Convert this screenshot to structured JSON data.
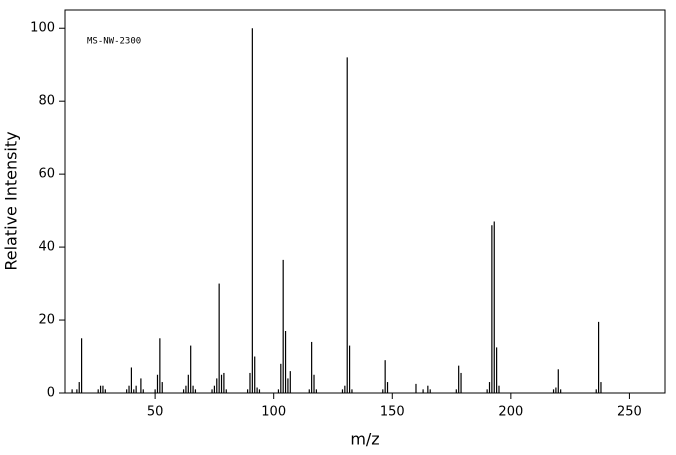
{
  "chart_data": {
    "type": "stem",
    "annotation": "MS-NW-2300",
    "xlabel": "m/z",
    "ylabel": "Relative Intensity",
    "color": "#000000",
    "xlim": [
      12,
      265
    ],
    "ylim": [
      0,
      105
    ],
    "xticks": [
      50,
      100,
      150,
      200,
      250
    ],
    "yticks": [
      0,
      20,
      40,
      60,
      80,
      100
    ],
    "x": [
      15,
      17,
      18,
      19,
      26,
      27,
      28,
      29,
      38,
      39,
      40,
      41,
      42,
      44,
      45,
      50,
      51,
      52,
      53,
      62,
      63,
      64,
      65,
      66,
      67,
      74,
      75,
      76,
      77,
      78,
      79,
      80,
      89,
      90,
      91,
      92,
      93,
      94,
      102,
      103,
      104,
      105,
      106,
      107,
      115,
      116,
      117,
      118,
      129,
      130,
      131,
      132,
      133,
      146,
      147,
      148,
      160,
      163,
      165,
      166,
      177,
      178,
      179,
      190,
      191,
      192,
      193,
      194,
      195,
      218,
      219,
      220,
      221,
      236,
      237,
      238
    ],
    "values": [
      1,
      1,
      3,
      15,
      1,
      2,
      2,
      1,
      1,
      2,
      7,
      1,
      2,
      4,
      1,
      1,
      5,
      15,
      3,
      1,
      2,
      5,
      13,
      2,
      1,
      1,
      2,
      4,
      30,
      5,
      5.5,
      1,
      1,
      5.5,
      100,
      10,
      1.5,
      1,
      1,
      8,
      36.5,
      17,
      4,
      6,
      1,
      14,
      5,
      1,
      1,
      2,
      92,
      13,
      1,
      1,
      9,
      3,
      2.5,
      1,
      2,
      1,
      1,
      7.5,
      5.5,
      1,
      3,
      46,
      47,
      12.5,
      2,
      1,
      1.5,
      6.5,
      1,
      1,
      19.5,
      3
    ]
  }
}
